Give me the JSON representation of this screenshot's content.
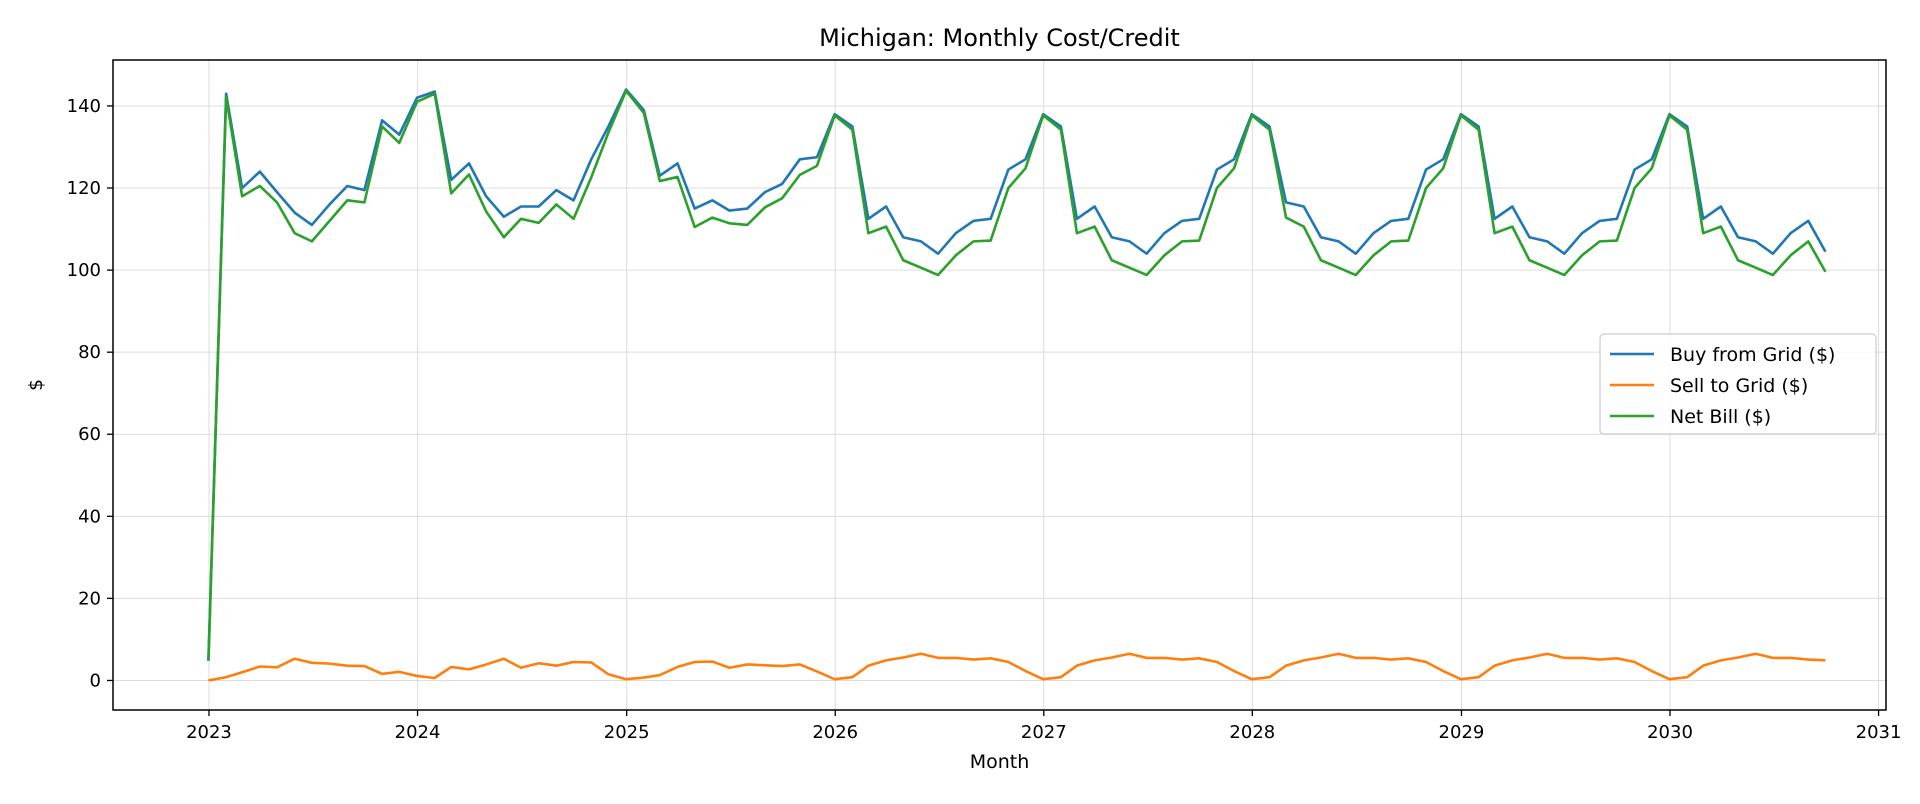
{
  "chart_data": {
    "type": "line",
    "title": "Michigan: Monthly Cost/Credit",
    "xlabel": "Month",
    "ylabel": "$",
    "x": [
      "2022-12",
      "2023-01",
      "2023-02",
      "2023-03",
      "2023-04",
      "2023-05",
      "2023-06",
      "2023-07",
      "2023-08",
      "2023-09",
      "2023-10",
      "2023-11",
      "2023-12",
      "2024-01",
      "2024-02",
      "2024-03",
      "2024-04",
      "2024-05",
      "2024-06",
      "2024-07",
      "2024-08",
      "2024-09",
      "2024-10",
      "2024-11",
      "2024-12",
      "2025-01",
      "2025-02",
      "2025-03",
      "2025-04",
      "2025-05",
      "2025-06",
      "2025-07",
      "2025-08",
      "2025-09",
      "2025-10",
      "2025-11",
      "2025-12",
      "2026-01",
      "2026-02",
      "2026-03",
      "2026-04",
      "2026-05",
      "2026-06",
      "2026-07",
      "2026-08",
      "2026-09",
      "2026-10",
      "2026-11",
      "2026-12",
      "2027-01",
      "2027-02",
      "2027-03",
      "2027-04",
      "2027-05",
      "2027-06",
      "2027-07",
      "2027-08",
      "2027-09",
      "2027-10",
      "2027-11",
      "2027-12",
      "2028-01",
      "2028-02",
      "2028-03",
      "2028-04",
      "2028-05",
      "2028-06",
      "2028-07",
      "2028-08",
      "2028-09",
      "2028-10",
      "2028-11",
      "2028-12",
      "2029-01",
      "2029-02",
      "2029-03",
      "2029-04",
      "2029-05",
      "2029-06",
      "2029-07",
      "2029-08",
      "2029-09",
      "2029-10",
      "2029-11",
      "2029-12",
      "2030-01",
      "2030-02",
      "2030-03",
      "2030-04",
      "2030-05",
      "2030-06",
      "2030-07",
      "2030-08",
      "2030-09"
    ],
    "series": [
      {
        "name": "Buy from Grid ($)",
        "color": "#1f77b4",
        "values": [
          4.8,
          143,
          120,
          124,
          119,
          114,
          111,
          116,
          120.5,
          119.5,
          136.5,
          133,
          142,
          143.5,
          122,
          126,
          118,
          113,
          115.5,
          115.5,
          119.5,
          117,
          127,
          135,
          144,
          139,
          123,
          126,
          115,
          117,
          114.5,
          115,
          119,
          121,
          127,
          127.5,
          138,
          135,
          112.5,
          115.5,
          108,
          107,
          104,
          109,
          112,
          112.5,
          124.5,
          127,
          138,
          135,
          112.5,
          115.5,
          108,
          107,
          104,
          109,
          112,
          112.5,
          124.5,
          127,
          138,
          135,
          116.5,
          115.5,
          108,
          107,
          104,
          109,
          112,
          112.5,
          124.5,
          127,
          138,
          135,
          112.5,
          115.5,
          108,
          107,
          104,
          109,
          112,
          112.5,
          124.5,
          127,
          138,
          135,
          112.5,
          115.5,
          108,
          107,
          104,
          109,
          112,
          104.5
        ]
      },
      {
        "name": "Sell to Grid ($)",
        "color": "#ff7f0e",
        "values": [
          0,
          0.8,
          2,
          3.4,
          3.2,
          5.3,
          4.3,
          4.1,
          3.6,
          3.5,
          1.6,
          2.1,
          1.1,
          0.6,
          3.3,
          2.7,
          3.9,
          5.3,
          3.1,
          4.2,
          3.6,
          4.5,
          4.4,
          1.5,
          0.3,
          0.7,
          1.3,
          3.3,
          4.5,
          4.6,
          3.1,
          3.9,
          3.7,
          3.5,
          3.9,
          2.2,
          0.3,
          0.8,
          3.6,
          4.9,
          5.6,
          6.5,
          5.5,
          5.5,
          5.1,
          5.4,
          4.5,
          2.3,
          0.3,
          0.8,
          3.6,
          4.9,
          5.6,
          6.5,
          5.5,
          5.5,
          5.1,
          5.4,
          4.5,
          2.3,
          0.3,
          0.8,
          3.6,
          4.9,
          5.6,
          6.5,
          5.5,
          5.5,
          5.1,
          5.4,
          4.5,
          2.3,
          0.3,
          0.8,
          3.6,
          4.9,
          5.6,
          6.5,
          5.5,
          5.5,
          5.1,
          5.4,
          4.5,
          2.3,
          0.3,
          0.8,
          3.6,
          4.9,
          5.6,
          6.5,
          5.5,
          5.5,
          5.1,
          4.9
        ]
      },
      {
        "name": "Net Bill ($)",
        "color": "#2ca02c",
        "values": [
          4.8,
          142.2,
          118,
          120.5,
          116.5,
          109,
          107,
          112,
          117,
          116.5,
          135,
          131,
          141,
          143,
          118.7,
          123.3,
          114.3,
          108,
          112.5,
          111.5,
          116,
          112.5,
          122.6,
          133.5,
          143.7,
          138.3,
          121.7,
          122.7,
          110.5,
          112.8,
          111.4,
          111,
          115.3,
          117.5,
          123.2,
          125.4,
          137.7,
          134.2,
          109,
          110.6,
          102.4,
          100.6,
          98.8,
          103.6,
          107,
          107.2,
          120,
          124.8,
          137.7,
          134.2,
          109,
          110.6,
          102.4,
          100.6,
          98.8,
          103.6,
          107,
          107.2,
          120,
          124.8,
          137.7,
          134.2,
          112.8,
          110.6,
          102.4,
          100.6,
          98.8,
          103.6,
          107,
          107.2,
          120,
          124.8,
          137.7,
          134.2,
          109,
          110.6,
          102.4,
          100.6,
          98.8,
          103.6,
          107,
          107.2,
          120,
          124.8,
          137.7,
          134.2,
          109,
          110.6,
          102.4,
          100.6,
          98.8,
          103.6,
          107,
          99.6
        ]
      }
    ],
    "x_ticks": [
      "2023",
      "2024",
      "2025",
      "2026",
      "2027",
      "2028",
      "2029",
      "2030",
      "2031"
    ],
    "y_ticks": [
      0,
      20,
      40,
      60,
      80,
      100,
      120,
      140
    ],
    "xlim": [
      "2022-07-17",
      "2031-01-14"
    ],
    "ylim": [
      -7.2,
      151.2
    ],
    "grid": true,
    "legend_position": "center-right"
  }
}
